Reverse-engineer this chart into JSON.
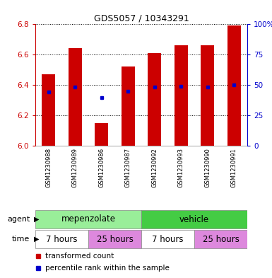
{
  "title": "GDS5057 / 10343291",
  "samples": [
    "GSM1230988",
    "GSM1230989",
    "GSM1230986",
    "GSM1230987",
    "GSM1230992",
    "GSM1230993",
    "GSM1230990",
    "GSM1230991"
  ],
  "bar_values": [
    6.47,
    6.64,
    6.15,
    6.52,
    6.61,
    6.66,
    6.66,
    6.79
  ],
  "bar_bottom": 6.0,
  "blue_dot_values": [
    6.355,
    6.385,
    6.315,
    6.36,
    6.385,
    6.39,
    6.385,
    6.4
  ],
  "ylim": [
    6.0,
    6.8
  ],
  "y2lim": [
    0,
    100
  ],
  "yticks": [
    6.0,
    6.2,
    6.4,
    6.6,
    6.8
  ],
  "y2ticks": [
    0,
    25,
    50,
    75,
    100
  ],
  "bar_color": "#cc0000",
  "blue_dot_color": "#0000cc",
  "bar_width": 0.5,
  "agent_mepenzolate_label": "mepenzolate",
  "agent_mepenzolate_color": "#99ee99",
  "agent_vehicle_label": "vehicle",
  "agent_vehicle_color": "#44cc44",
  "time_groups": [
    {
      "label": "7 hours",
      "start": 0,
      "end": 2,
      "color": "#ffffff"
    },
    {
      "label": "25 hours",
      "start": 2,
      "end": 4,
      "color": "#dd88dd"
    },
    {
      "label": "7 hours",
      "start": 4,
      "end": 6,
      "color": "#ffffff"
    },
    {
      "label": "25 hours",
      "start": 6,
      "end": 8,
      "color": "#dd88dd"
    }
  ],
  "legend_red_label": "transformed count",
  "legend_blue_label": "percentile rank within the sample",
  "agent_label": "agent",
  "time_label": "time",
  "plot_bg": "#ffffff",
  "tick_bg": "#cccccc",
  "grid_color": "#000000",
  "spine_color_left": "#cc0000",
  "spine_color_right": "#0000cc"
}
